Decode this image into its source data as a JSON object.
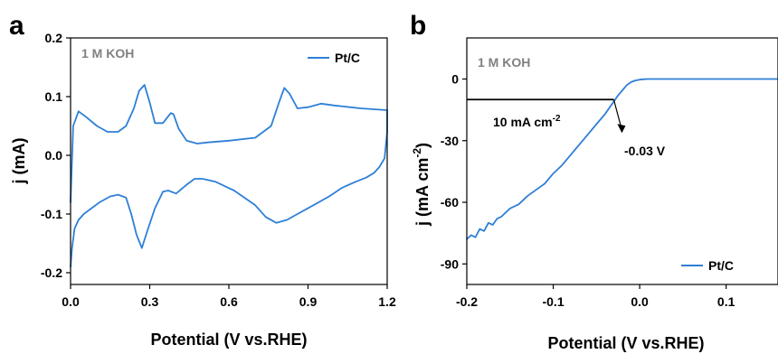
{
  "figure": {
    "panels": [
      {
        "letter": "a",
        "condition": "1 M KOH",
        "legend": "Pt/C",
        "xlabel": "Potential (V vs.RHE)",
        "ylabel": "j (mA)"
      },
      {
        "letter": "b",
        "condition": "1 M KOH",
        "legend": "Pt/C",
        "xlabel": "Potential (V vs.RHE)",
        "ylabel_main": "j (mA cm",
        "ylabel_sup": "-2",
        "ylabel_end": ")",
        "ref_label_main": "10 mA cm",
        "ref_label_sup": "-2",
        "arrow_label": "-0.03 V"
      }
    ]
  },
  "chart_data": [
    {
      "type": "line",
      "panel": "a",
      "title": "",
      "xlabel": "Potential (V vs.RHE)",
      "ylabel": "j (mA)",
      "xlim": [
        0.0,
        1.2
      ],
      "ylim": [
        -0.22,
        0.2
      ],
      "xticks": [
        0.0,
        0.3,
        0.6,
        0.9,
        1.2
      ],
      "xtick_labels": [
        "0.0",
        "0.3",
        "0.6",
        "0.9",
        "1.2"
      ],
      "yticks": [
        -0.2,
        -0.1,
        0.0,
        0.1,
        0.2
      ],
      "ytick_labels": [
        "-0.2",
        "-0.1",
        "0.0",
        "0.1",
        "0.2"
      ],
      "annotations": [
        "1 M KOH"
      ],
      "legend_position": "top-right",
      "series": [
        {
          "name": "Pt/C",
          "color": "#2f7fd6",
          "x": [
            0.0,
            0.01,
            0.03,
            0.06,
            0.1,
            0.14,
            0.18,
            0.21,
            0.24,
            0.26,
            0.28,
            0.3,
            0.32,
            0.35,
            0.38,
            0.39,
            0.41,
            0.44,
            0.48,
            0.52,
            0.6,
            0.7,
            0.76,
            0.79,
            0.81,
            0.83,
            0.86,
            0.9,
            0.95,
            1.0,
            1.1,
            1.2,
            1.2,
            1.19,
            1.17,
            1.15,
            1.12,
            1.08,
            1.03,
            0.98,
            0.92,
            0.86,
            0.82,
            0.78,
            0.74,
            0.7,
            0.62,
            0.55,
            0.5,
            0.47,
            0.44,
            0.4,
            0.37,
            0.35,
            0.32,
            0.29,
            0.27,
            0.25,
            0.23,
            0.21,
            0.18,
            0.15,
            0.11,
            0.08,
            0.05,
            0.03,
            0.015,
            0.005,
            0.0
          ],
          "y": [
            -0.08,
            0.05,
            0.075,
            0.065,
            0.05,
            0.04,
            0.04,
            0.05,
            0.08,
            0.11,
            0.12,
            0.09,
            0.055,
            0.055,
            0.072,
            0.07,
            0.045,
            0.025,
            0.02,
            0.022,
            0.025,
            0.03,
            0.05,
            0.09,
            0.115,
            0.105,
            0.08,
            0.082,
            0.088,
            0.085,
            0.08,
            0.077,
            0.04,
            -0.005,
            -0.02,
            -0.03,
            -0.038,
            -0.045,
            -0.055,
            -0.07,
            -0.085,
            -0.1,
            -0.11,
            -0.115,
            -0.105,
            -0.085,
            -0.06,
            -0.045,
            -0.04,
            -0.04,
            -0.05,
            -0.065,
            -0.06,
            -0.062,
            -0.09,
            -0.13,
            -0.158,
            -0.135,
            -0.1,
            -0.072,
            -0.067,
            -0.07,
            -0.08,
            -0.09,
            -0.1,
            -0.11,
            -0.125,
            -0.16,
            -0.19
          ]
        }
      ]
    },
    {
      "type": "line",
      "panel": "b",
      "title": "",
      "xlabel": "Potential (V vs.RHE)",
      "ylabel": "j (mA cm-2)",
      "xlim": [
        -0.2,
        0.16
      ],
      "ylim": [
        -100,
        20
      ],
      "xticks": [
        -0.2,
        -0.1,
        0.0,
        0.1
      ],
      "xtick_labels": [
        "-0.2",
        "-0.1",
        "0.0",
        "0.1"
      ],
      "yticks": [
        -90,
        -60,
        -30,
        0
      ],
      "ytick_labels": [
        "-90",
        "-60",
        "-30",
        "0"
      ],
      "annotations": [
        "1 M KOH",
        "10 mA cm-2",
        "-0.03 V"
      ],
      "reference_line": {
        "y": -10,
        "x_start": -0.2,
        "x_end": -0.03
      },
      "arrow": {
        "x": -0.03,
        "y": -10,
        "label": "-0.03 V"
      },
      "legend_position": "bottom-right",
      "series": [
        {
          "name": "Pt/C",
          "color": "#2f7fd6",
          "x": [
            -0.2,
            -0.195,
            -0.19,
            -0.185,
            -0.18,
            -0.175,
            -0.17,
            -0.165,
            -0.16,
            -0.15,
            -0.14,
            -0.13,
            -0.12,
            -0.11,
            -0.1,
            -0.09,
            -0.08,
            -0.07,
            -0.06,
            -0.05,
            -0.04,
            -0.03,
            -0.025,
            -0.02,
            -0.015,
            -0.01,
            -0.005,
            0.0,
            0.005,
            0.01,
            0.02,
            0.05,
            0.1,
            0.16
          ],
          "y": [
            -78,
            -76,
            -77,
            -73,
            -74,
            -70,
            -71,
            -68,
            -67,
            -63,
            -61,
            -57,
            -54,
            -51,
            -46,
            -42,
            -37,
            -32,
            -27,
            -22,
            -17,
            -11,
            -8,
            -5.5,
            -3,
            -1.5,
            -0.7,
            -0.3,
            -0.1,
            0,
            0,
            0,
            0,
            0
          ]
        }
      ]
    }
  ]
}
